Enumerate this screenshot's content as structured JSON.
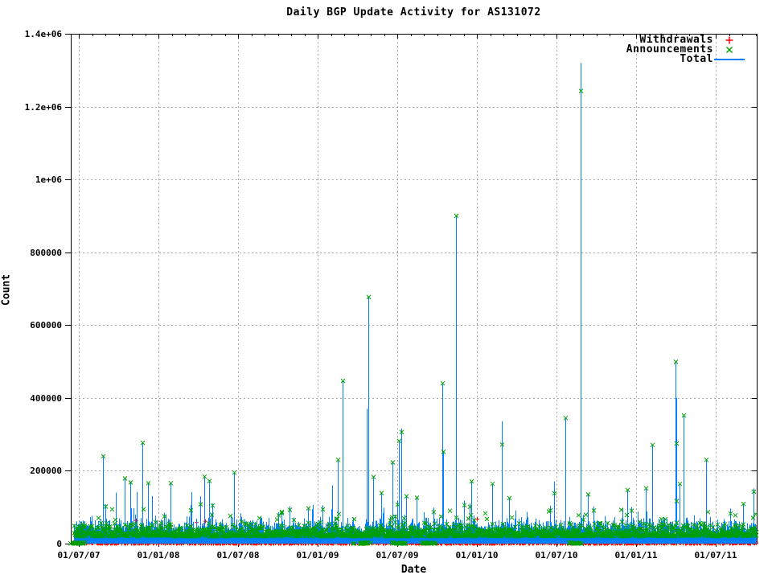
{
  "title": "Daily BGP Update Activity for AS131072",
  "x_axis": {
    "label": "Date",
    "ticks": [
      "01/07/07",
      "01/01/08",
      "01/07/08",
      "01/01/09",
      "01/07/09",
      "01/01/10",
      "01/07/10",
      "01/01/11",
      "01/07/11"
    ]
  },
  "y_axis": {
    "label": "Count",
    "ticks": [
      "0",
      "200000",
      "400000",
      "600000",
      "800000",
      "1e+06",
      "1.2e+06",
      "1.4e+06"
    ]
  },
  "legend": {
    "rows": [
      {
        "label": "Withdrawals",
        "marker": "plus",
        "color_key": "withdrawals"
      },
      {
        "label": "Announcements",
        "marker": "cross",
        "color_key": "announcements"
      },
      {
        "label": "Total",
        "marker": "line",
        "color_key": "total"
      }
    ]
  },
  "colors": {
    "withdrawals": "#ff0000",
    "announcements": "#00a000",
    "total": "#0080ff",
    "grid": "#a8a8a8",
    "border": "#000000",
    "background": "#ffffff"
  },
  "chart_data": {
    "type": "line",
    "title": "Daily BGP Update Activity for AS131072",
    "xlabel": "Date",
    "ylabel": "Count",
    "x_tick_labels": [
      "01/07/07",
      "01/01/08",
      "01/07/08",
      "01/01/09",
      "01/07/09",
      "01/01/10",
      "01/07/10",
      "01/01/11",
      "01/07/11"
    ],
    "y_tick_labels": [
      "0",
      "200000",
      "400000",
      "600000",
      "800000",
      "1e+06",
      "1.2e+06",
      "1.4e+06"
    ],
    "ylim": [
      0,
      1400000
    ],
    "grid": true,
    "legend_position": "top-right-inside",
    "series": [
      {
        "name": "Withdrawals",
        "style": "points",
        "marker": "plus",
        "typical_band": [
          0,
          16000
        ]
      },
      {
        "name": "Announcements",
        "style": "points",
        "marker": "cross",
        "typical_band": [
          20000,
          62000
        ]
      },
      {
        "name": "Total",
        "style": "impulses",
        "typical_band": [
          30000,
          110000
        ]
      }
    ],
    "major_spikes": [
      {
        "f": 0.047,
        "total": 240000,
        "ann": 240000
      },
      {
        "f": 0.066,
        "total": 140000,
        "ann": 0
      },
      {
        "f": 0.079,
        "total": 179000,
        "ann": 179000
      },
      {
        "f": 0.087,
        "total": 168000,
        "ann": 168000
      },
      {
        "f": 0.096,
        "total": 142000,
        "ann": 0
      },
      {
        "f": 0.104,
        "total": 277000,
        "ann": 277000
      },
      {
        "f": 0.113,
        "total": 166000,
        "ann": 166000
      },
      {
        "f": 0.145,
        "total": 166000,
        "ann": 166000
      },
      {
        "f": 0.176,
        "total": 141000,
        "ann": 0
      },
      {
        "f": 0.189,
        "total": 130000,
        "ann": 108000
      },
      {
        "f": 0.195,
        "total": 184000,
        "ann": 184000
      },
      {
        "f": 0.202,
        "total": 172000,
        "ann": 172000
      },
      {
        "f": 0.238,
        "total": 195000,
        "ann": 195000
      },
      {
        "f": 0.346,
        "total": 97000,
        "ann": 97000
      },
      {
        "f": 0.381,
        "total": 160000,
        "ann": 0
      },
      {
        "f": 0.389,
        "total": 230000,
        "ann": 230000
      },
      {
        "f": 0.396,
        "total": 447000,
        "ann": 447000
      },
      {
        "f": 0.431,
        "total": 370000,
        "ann": 0
      },
      {
        "f": 0.434,
        "total": 677000,
        "ann": 677000
      },
      {
        "f": 0.441,
        "total": 183000,
        "ann": 183000
      },
      {
        "f": 0.453,
        "total": 139000,
        "ann": 139000
      },
      {
        "f": 0.469,
        "total": 223000,
        "ann": 223000
      },
      {
        "f": 0.478,
        "total": 282000,
        "ann": 282000
      },
      {
        "f": 0.482,
        "total": 316000,
        "ann": 306000
      },
      {
        "f": 0.489,
        "total": 130000,
        "ann": 130000
      },
      {
        "f": 0.504,
        "total": 126000,
        "ann": 126000
      },
      {
        "f": 0.542,
        "total": 440000,
        "ann": 440000
      },
      {
        "f": 0.543,
        "total": 252000,
        "ann": 252000
      },
      {
        "f": 0.562,
        "total": 900000,
        "ann": 900000
      },
      {
        "f": 0.584,
        "total": 171000,
        "ann": 171000
      },
      {
        "f": 0.614,
        "total": 164000,
        "ann": 164000
      },
      {
        "f": 0.628,
        "total": 336000,
        "ann": 272000
      },
      {
        "f": 0.639,
        "total": 125000,
        "ann": 125000
      },
      {
        "f": 0.705,
        "total": 171000,
        "ann": 138000
      },
      {
        "f": 0.721,
        "total": 345000,
        "ann": 345000
      },
      {
        "f": 0.743,
        "total": 1320000,
        "ann": 1243000
      },
      {
        "f": 0.754,
        "total": 135000,
        "ann": 135000
      },
      {
        "f": 0.811,
        "total": 147000,
        "ann": 147000
      },
      {
        "f": 0.838,
        "total": 152000,
        "ann": 152000
      },
      {
        "f": 0.848,
        "total": 271000,
        "ann": 271000
      },
      {
        "f": 0.882,
        "total": 500000,
        "ann": 499000
      },
      {
        "f": 0.883,
        "total": 400000,
        "ann": 275000
      },
      {
        "f": 0.888,
        "total": 164000,
        "ann": 164000
      },
      {
        "f": 0.893,
        "total": 352000,
        "ann": 352000
      },
      {
        "f": 0.926,
        "total": 230000,
        "ann": 230000
      },
      {
        "f": 0.98,
        "total": 109000,
        "ann": 109000
      }
    ],
    "zero_cluster_fracs": [
      0.011,
      0.424,
      0.477,
      0.521,
      0.734
    ],
    "noise": {
      "col_start": 92,
      "col_end": 940,
      "withdrawal_max": 14000,
      "ann_min": 20000,
      "ann_span": 42000,
      "extra_base": 18000,
      "tail1_chance": 0.08,
      "tail1_max": 55000,
      "tail2_chance": 0.02,
      "tail2_max": 120000,
      "top_marker_chance": 0.6,
      "high_ann_chance": 0.04,
      "red_outlier_count": 12,
      "red_outlier_min": 20000,
      "red_outlier_max": 68000
    }
  }
}
